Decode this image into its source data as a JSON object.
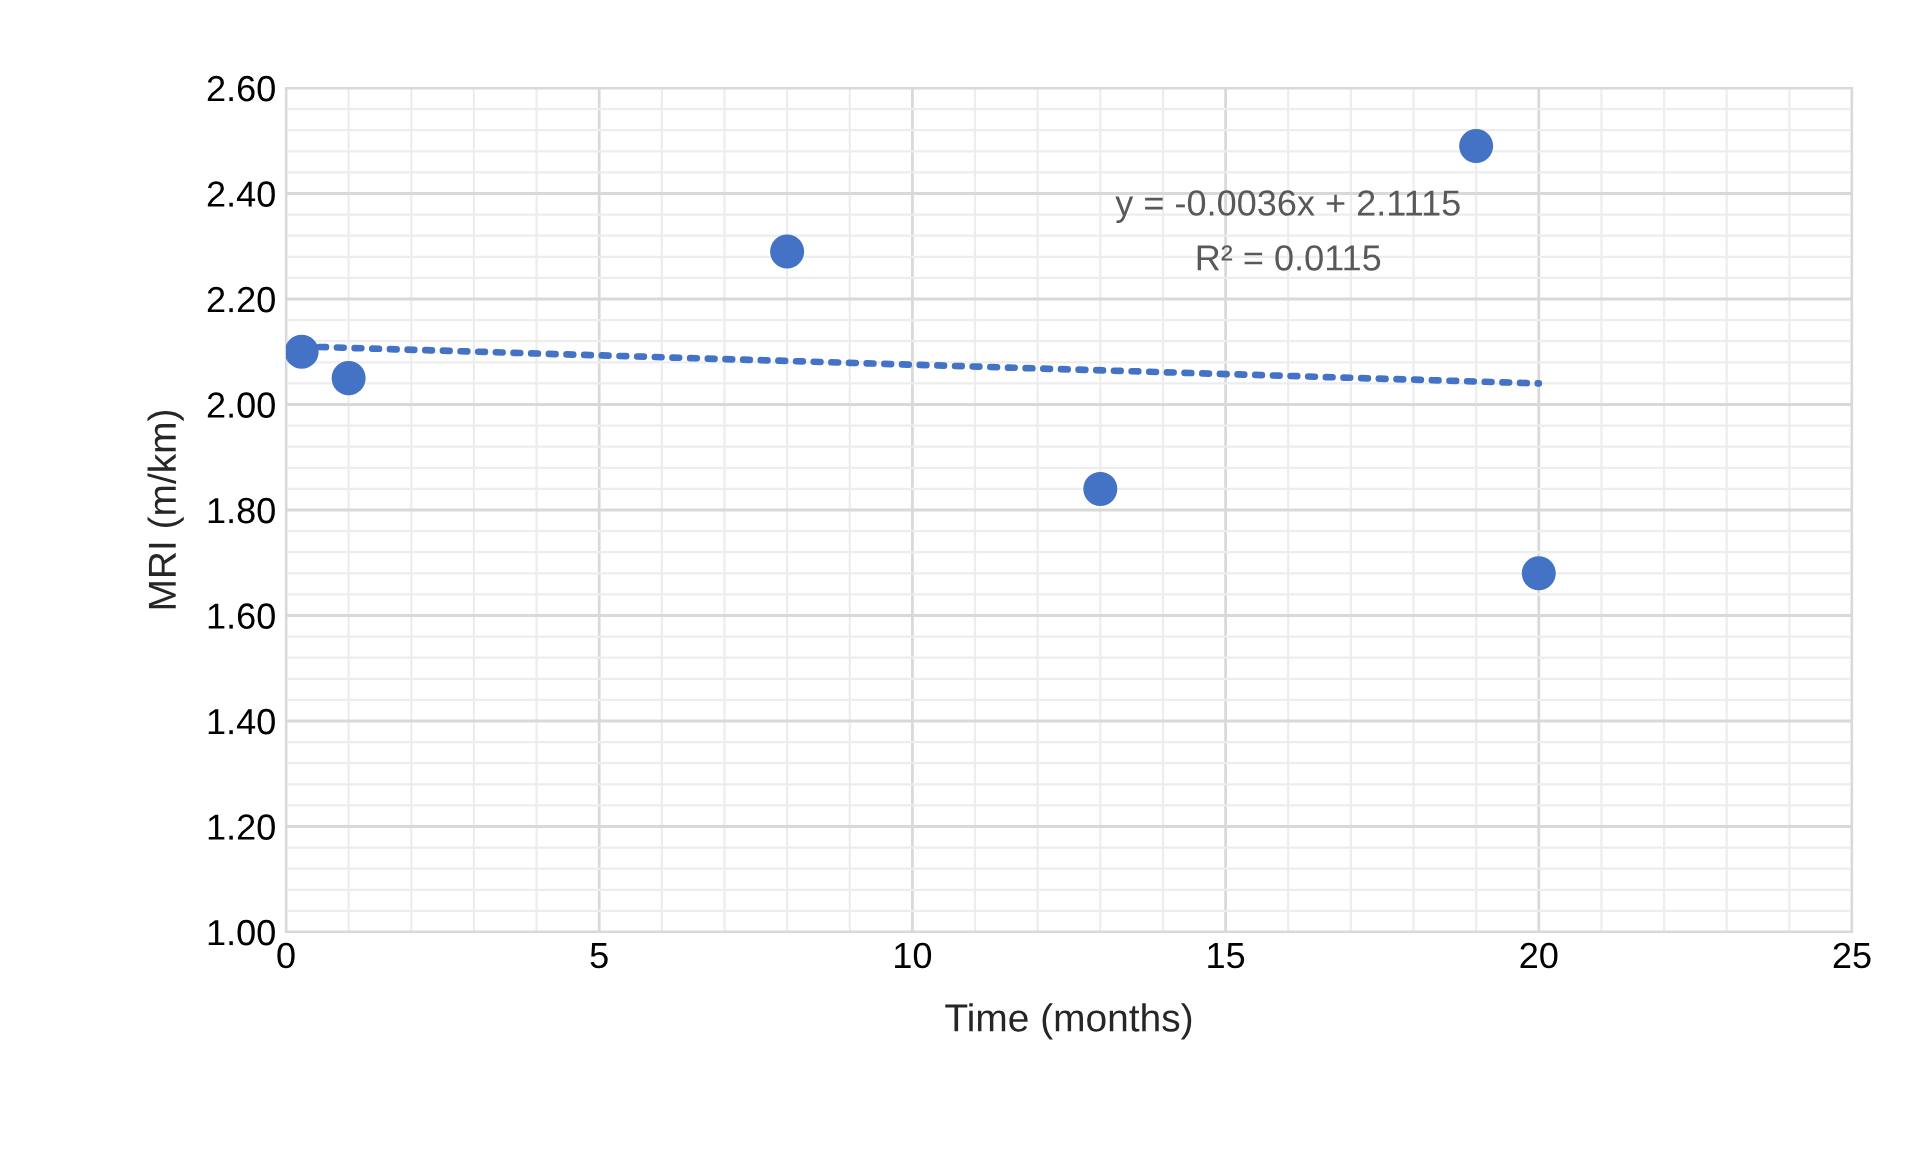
{
  "chart_data": {
    "type": "scatter",
    "xlabel": "Time (months)",
    "ylabel": "MRI (m/km)",
    "series": [
      {
        "color": "#4472c4",
        "x": [
          0.25,
          1,
          8,
          13,
          19,
          20
        ],
        "values": [
          2.1,
          2.05,
          2.29,
          1.84,
          2.49,
          1.68
        ],
        "marker": "circle"
      },
      {
        "type": "line",
        "color": "#4472c4",
        "x": [
          0.25,
          20
        ],
        "values": [
          2.11,
          2.04
        ],
        "line_style": "dotted"
      }
    ],
    "annotations": [
      "y = -0.0036x + 2.1115",
      "R² = 0.0115"
    ],
    "xlim": [
      0,
      25
    ],
    "xticks": [
      0,
      5,
      10,
      15,
      20,
      25
    ],
    "ylim": [
      1.0,
      2.6
    ],
    "yticks": [
      {
        "value": 1.0,
        "label": "1.00"
      },
      {
        "value": 1.2,
        "label": "1.20"
      },
      {
        "value": 1.4,
        "label": "1.40"
      },
      {
        "value": 1.6,
        "label": "1.60"
      },
      {
        "value": 1.8,
        "label": "1.80"
      },
      {
        "value": 2.0,
        "label": "2.00"
      },
      {
        "value": 2.2,
        "label": "2.20"
      },
      {
        "value": 2.4,
        "label": "2.40"
      },
      {
        "value": 2.6,
        "label": "2.60"
      }
    ],
    "grid": true,
    "legend": false
  }
}
